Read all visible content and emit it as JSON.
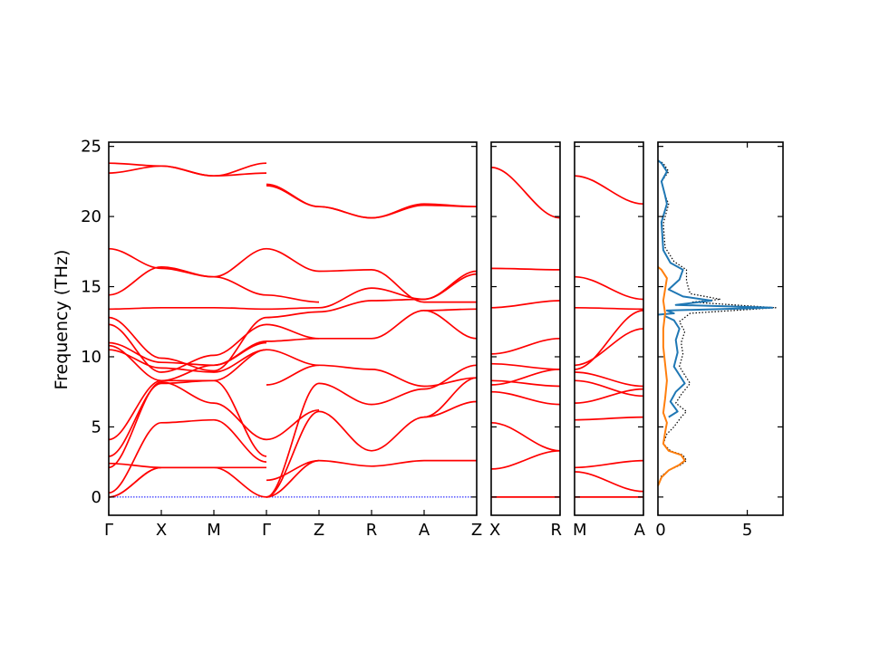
{
  "chart_data": {
    "type": "line",
    "ylabel": "Frequency (THz)",
    "ylim": [
      -1.3,
      25.3
    ],
    "y_ticks": [
      "0",
      "5",
      "10",
      "15",
      "20",
      "25"
    ],
    "colors": {
      "band": "#ff0000",
      "zero_line": "#0000ff",
      "dos_a": "#1f77b4",
      "dos_b": "#ff7f0e",
      "dos_total": "#000000"
    },
    "panels": [
      {
        "id": "panel-main",
        "segments": [
          {
            "from": "Γ",
            "to": "X",
            "bands": [
              [
                0,
                2.1
              ],
              [
                0,
                2.1
              ],
              [
                0.3,
                5.3
              ],
              [
                2.1,
                8.2
              ],
              [
                2.4,
                2.1
              ],
              [
                2.9,
                8.1
              ],
              [
                4.1,
                8.3
              ],
              [
                10.5,
                9.2
              ],
              [
                10.8,
                8.3
              ],
              [
                11.0,
                9.6
              ],
              [
                12.3,
                8.9
              ],
              [
                12.8,
                9.9
              ],
              [
                13.4,
                13.5
              ],
              [
                14.4,
                16.4
              ],
              [
                17.7,
                16.3
              ],
              [
                23.1,
                23.6
              ],
              [
                23.8,
                23.6
              ]
            ]
          },
          {
            "from": "X",
            "to": "M",
            "bands": [
              [
                2.1,
                2.1
              ],
              [
                2.1,
                2.1
              ],
              [
                5.3,
                5.5
              ],
              [
                8.2,
                6.7
              ],
              [
                8.1,
                8.3
              ],
              [
                8.3,
                8.3
              ],
              [
                9.2,
                8.9
              ],
              [
                8.3,
                9.4
              ],
              [
                9.6,
                9.4
              ],
              [
                8.9,
                10.1
              ],
              [
                9.9,
                9.0
              ],
              [
                13.5,
                13.5
              ],
              [
                16.4,
                15.7
              ],
              [
                16.3,
                15.7
              ],
              [
                23.6,
                22.9
              ],
              [
                23.6,
                22.9
              ]
            ]
          },
          {
            "from": "M",
            "to": "Γ",
            "bands": [
              [
                2.1,
                0
              ],
              [
                2.1,
                2.1
              ],
              [
                5.5,
                2.5
              ],
              [
                6.7,
                4.1
              ],
              [
                8.3,
                2.9
              ],
              [
                8.3,
                10.5
              ],
              [
                8.9,
                10.5
              ],
              [
                9.4,
                11.0
              ],
              [
                9.4,
                11.1
              ],
              [
                10.1,
                12.3
              ],
              [
                9.0,
                12.8
              ],
              [
                13.5,
                13.4
              ],
              [
                15.7,
                14.4
              ],
              [
                15.7,
                17.7
              ],
              [
                22.9,
                23.1
              ],
              [
                22.9,
                23.8
              ]
            ]
          },
          {
            "from": "Γ",
            "to": "Z",
            "bands": [
              [
                0,
                2.6
              ],
              [
                0,
                6.1
              ],
              [
                0,
                8.1
              ],
              [
                1.2,
                2.6
              ],
              [
                4.1,
                6.2
              ],
              [
                8.0,
                9.4
              ],
              [
                10.5,
                9.4
              ],
              [
                11.1,
                11.3
              ],
              [
                12.3,
                11.3
              ],
              [
                12.8,
                13.2
              ],
              [
                13.4,
                13.5
              ],
              [
                14.4,
                13.9
              ],
              [
                17.7,
                16.1
              ],
              [
                22.3,
                20.7
              ],
              [
                22.2,
                20.7
              ]
            ]
          },
          {
            "from": "Z",
            "to": "R",
            "bands": [
              [
                2.6,
                2.2
              ],
              [
                6.1,
                3.3
              ],
              [
                8.1,
                6.6
              ],
              [
                9.4,
                9.1
              ],
              [
                11.3,
                11.3
              ],
              [
                13.2,
                14.0
              ],
              [
                13.5,
                14.9
              ],
              [
                16.1,
                16.2
              ],
              [
                20.7,
                19.9
              ],
              [
                20.7,
                19.9
              ]
            ]
          },
          {
            "from": "R",
            "to": "A",
            "bands": [
              [
                2.2,
                2.6
              ],
              [
                3.3,
                5.7
              ],
              [
                6.6,
                7.7
              ],
              [
                9.1,
                7.9
              ],
              [
                11.3,
                13.3
              ],
              [
                14.0,
                14.1
              ],
              [
                14.9,
                14.1
              ],
              [
                16.2,
                13.9
              ],
              [
                19.9,
                20.9
              ],
              [
                19.9,
                20.8
              ]
            ]
          },
          {
            "from": "A",
            "to": "Z",
            "bands": [
              [
                2.6,
                2.6
              ],
              [
                5.7,
                6.8
              ],
              [
                5.7,
                8.5
              ],
              [
                7.7,
                9.4
              ],
              [
                7.9,
                8.5
              ],
              [
                13.3,
                11.3
              ],
              [
                13.3,
                13.4
              ],
              [
                14.1,
                16.1
              ],
              [
                14.1,
                15.9
              ],
              [
                13.9,
                13.9
              ],
              [
                20.9,
                20.7
              ],
              [
                20.8,
                20.7
              ]
            ]
          }
        ],
        "labels": [
          "Γ",
          "X",
          "M",
          "Γ",
          "Z",
          "R",
          "A",
          "Z"
        ]
      },
      {
        "id": "panel-xr",
        "segments": [
          {
            "from": "X",
            "to": "R",
            "bands": [
              [
                0,
                0
              ],
              [
                2.0,
                3.3
              ],
              [
                5.3,
                3.3
              ],
              [
                7.5,
                6.6
              ],
              [
                8.3,
                7.9
              ],
              [
                8.0,
                9.1
              ],
              [
                9.5,
                9.1
              ],
              [
                10.2,
                11.3
              ],
              [
                13.5,
                14.0
              ],
              [
                16.3,
                16.2
              ],
              [
                23.5,
                19.9
              ]
            ]
          }
        ],
        "labels": [
          "X",
          "R"
        ]
      },
      {
        "id": "panel-ma",
        "segments": [
          {
            "from": "M",
            "to": "A",
            "bands": [
              [
                0,
                0
              ],
              [
                2.1,
                2.6
              ],
              [
                1.8,
                0.4
              ],
              [
                5.5,
                5.7
              ],
              [
                6.7,
                7.7
              ],
              [
                8.3,
                7.2
              ],
              [
                8.9,
                7.9
              ],
              [
                9.1,
                13.3
              ],
              [
                9.4,
                12.0
              ],
              [
                13.5,
                13.4
              ],
              [
                15.7,
                14.1
              ],
              [
                22.9,
                20.9
              ]
            ]
          }
        ],
        "labels": [
          "M",
          "A"
        ]
      }
    ],
    "dos": {
      "x_ticks": [
        "0",
        "5"
      ],
      "xlim": [
        0,
        7
      ],
      "series": [
        {
          "style": "total",
          "points": [
            [
              0.0,
              0.8
            ],
            [
              0.2,
              1.5
            ],
            [
              0.6,
              1.9
            ],
            [
              1.3,
              2.3
            ],
            [
              1.6,
              2.6
            ],
            [
              1.4,
              3.0
            ],
            [
              0.7,
              3.3
            ],
            [
              0.3,
              3.8
            ],
            [
              0.5,
              4.5
            ],
            [
              0.9,
              5.0
            ],
            [
              1.3,
              5.7
            ],
            [
              1.6,
              6.1
            ],
            [
              1.0,
              6.7
            ],
            [
              1.3,
              7.3
            ],
            [
              1.8,
              8.1
            ],
            [
              1.5,
              8.7
            ],
            [
              1.2,
              9.3
            ],
            [
              1.4,
              10.2
            ],
            [
              1.3,
              11.0
            ],
            [
              1.5,
              11.8
            ],
            [
              1.2,
              12.5
            ],
            [
              1.8,
              13.1
            ],
            [
              6.6,
              13.5
            ],
            [
              1.9,
              13.9
            ],
            [
              3.5,
              14.1
            ],
            [
              1.8,
              14.5
            ],
            [
              1.6,
              15.4
            ],
            [
              1.6,
              16.2
            ],
            [
              0.9,
              16.8
            ],
            [
              0.4,
              17.8
            ],
            [
              0.3,
              19.5
            ],
            [
              0.6,
              20.9
            ],
            [
              0.4,
              21.5
            ],
            [
              0.2,
              22.5
            ],
            [
              0.6,
              23.2
            ],
            [
              0.3,
              23.8
            ],
            [
              0.0,
              24.0
            ]
          ]
        },
        {
          "style": "a",
          "points": [
            [
              0.0,
              13.0
            ],
            [
              0.9,
              13.1
            ],
            [
              0.5,
              13.3
            ],
            [
              6.4,
              13.5
            ],
            [
              1.0,
              13.7
            ],
            [
              3.0,
              14.0
            ],
            [
              1.4,
              14.3
            ],
            [
              0.6,
              14.8
            ],
            [
              1.2,
              15.5
            ],
            [
              1.4,
              16.2
            ],
            [
              0.7,
              16.7
            ],
            [
              0.3,
              17.6
            ],
            [
              0.2,
              19.6
            ],
            [
              0.5,
              20.9
            ],
            [
              0.4,
              21.5
            ],
            [
              0.2,
              22.5
            ],
            [
              0.5,
              23.2
            ],
            [
              0.2,
              23.8
            ],
            [
              0.0,
              24.0
            ]
          ]
        },
        {
          "style": "a2",
          "points": [
            [
              0.6,
              5.7
            ],
            [
              1.1,
              6.1
            ],
            [
              0.7,
              6.8
            ],
            [
              1.0,
              7.5
            ],
            [
              1.5,
              8.1
            ],
            [
              1.2,
              8.7
            ],
            [
              0.9,
              9.3
            ],
            [
              1.1,
              10.3
            ],
            [
              1.0,
              11.2
            ],
            [
              1.2,
              12.0
            ],
            [
              0.9,
              12.6
            ],
            [
              0.4,
              12.9
            ]
          ]
        },
        {
          "style": "b",
          "points": [
            [
              0.0,
              0.8
            ],
            [
              0.2,
              1.4
            ],
            [
              0.6,
              1.9
            ],
            [
              1.2,
              2.3
            ],
            [
              1.5,
              2.6
            ],
            [
              1.3,
              3.0
            ],
            [
              0.6,
              3.3
            ],
            [
              0.3,
              3.8
            ],
            [
              0.4,
              4.6
            ],
            [
              0.5,
              5.3
            ],
            [
              0.3,
              6.0
            ],
            [
              0.4,
              7.0
            ],
            [
              0.5,
              8.3
            ],
            [
              0.4,
              9.5
            ],
            [
              0.3,
              10.7
            ],
            [
              0.3,
              12.0
            ],
            [
              0.4,
              13.1
            ],
            [
              0.3,
              14.0
            ],
            [
              0.4,
              14.8
            ],
            [
              0.5,
              15.6
            ],
            [
              0.2,
              16.2
            ],
            [
              0.0,
              16.4
            ]
          ]
        }
      ]
    }
  }
}
